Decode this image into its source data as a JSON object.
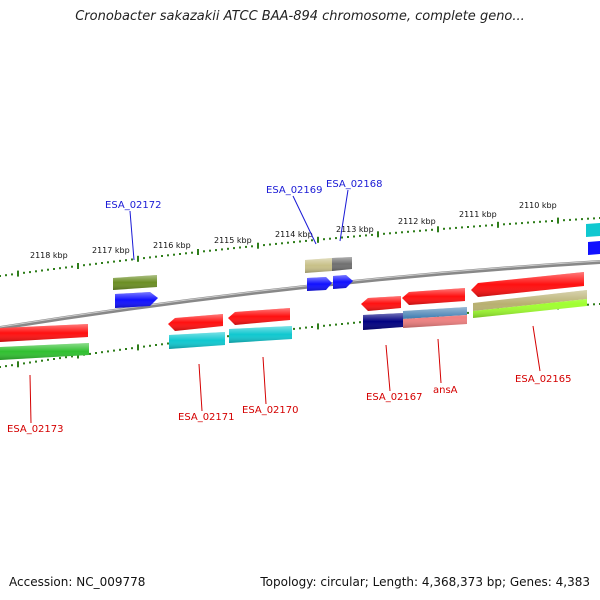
{
  "title": "Cronobacter sakazakii ATCC BAA-894 chromosome, complete geno...",
  "footer": {
    "accession": "Accession: NC_009778",
    "summary": "Topology: circular; Length: 4,368,373 bp; Genes: 4,383"
  },
  "ruler": {
    "labels": [
      "2118 kbp",
      "2117 kbp",
      "2116 kbp",
      "2115 kbp",
      "2114 kbp",
      "2113 kbp",
      "2112 kbp",
      "2111 kbp",
      "2110 kbp"
    ]
  },
  "labels": {
    "outer": [
      "ESA_02172",
      "ESA_02169",
      "ESA_02168"
    ],
    "inner": [
      "ESA_02173",
      "ESA_02171",
      "ESA_02170",
      "ESA_02167",
      "ansA",
      "ESA_02165"
    ]
  },
  "colors": {
    "backbone": "#777777",
    "tick": "#2e7d1a",
    "outer_label": "#1a1ad6",
    "inner_label": "#d40000",
    "gene_red": "#ff1010",
    "gene_blue": "#1010ff",
    "gene_cyan": "#10c8d0",
    "gene_green": "#30c030",
    "gene_olive": "#6b8e23",
    "gene_navy": "#000080",
    "gene_tan": "#c8c088",
    "gene_gray": "#707070",
    "gene_steel": "#4682b4",
    "gene_salmon": "#f08080",
    "gene_lime": "#a0ff30",
    "gene_khaki": "#b8b070"
  }
}
